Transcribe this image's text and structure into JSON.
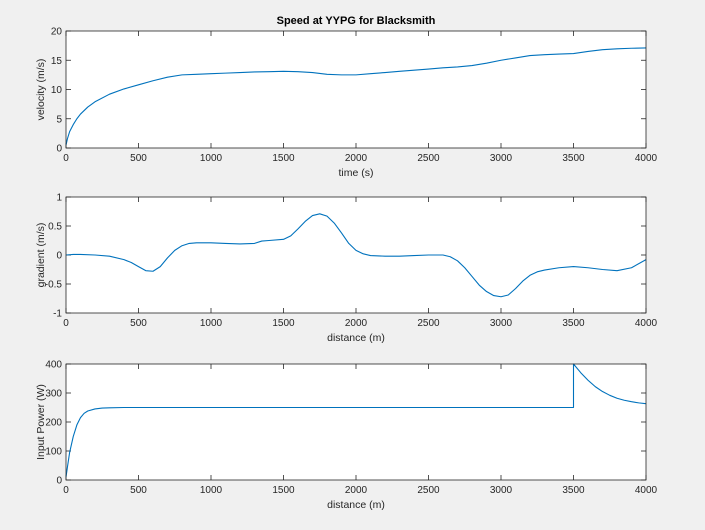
{
  "chart_data": [
    {
      "type": "line",
      "title": "Speed at YYPG for Blacksmith",
      "xlabel": "time (s)",
      "ylabel": "velocity (m/s)",
      "xlim": [
        0,
        4000
      ],
      "ylim": [
        0,
        20
      ],
      "xticks": [
        0,
        500,
        1000,
        1500,
        2000,
        2500,
        3000,
        3500,
        4000
      ],
      "yticks": [
        0,
        5,
        10,
        15,
        20
      ],
      "grid": false,
      "color": "#0072bd",
      "series": [
        {
          "x": [
            0,
            10,
            25,
            50,
            75,
            100,
            150,
            200,
            300,
            400,
            500,
            600,
            700,
            800,
            900,
            1000,
            1100,
            1200,
            1300,
            1400,
            1500,
            1600,
            1700,
            1800,
            1900,
            2000,
            2100,
            2200,
            2300,
            2400,
            2500,
            2600,
            2700,
            2800,
            2900,
            3000,
            3100,
            3200,
            3300,
            3400,
            3500,
            3600,
            3700,
            3800,
            3900,
            4000
          ],
          "y": [
            0.5,
            1.6,
            2.8,
            4.0,
            5.0,
            5.8,
            7.0,
            7.9,
            9.2,
            10.1,
            10.8,
            11.5,
            12.1,
            12.5,
            12.6,
            12.7,
            12.8,
            12.9,
            13.0,
            13.05,
            13.1,
            13.05,
            12.9,
            12.6,
            12.5,
            12.5,
            12.7,
            12.9,
            13.1,
            13.3,
            13.5,
            13.7,
            13.85,
            14.1,
            14.5,
            15.0,
            15.4,
            15.8,
            15.95,
            16.05,
            16.15,
            16.5,
            16.8,
            16.95,
            17.05,
            17.1
          ]
        }
      ]
    },
    {
      "type": "line",
      "title": "",
      "xlabel": "distance (m)",
      "ylabel": "gradient (m/s)",
      "xlim": [
        0,
        4000
      ],
      "ylim": [
        -1,
        1
      ],
      "xticks": [
        0,
        500,
        1000,
        1500,
        2000,
        2500,
        3000,
        3500,
        4000
      ],
      "yticks": [
        -1,
        -0.5,
        0,
        0.5,
        1
      ],
      "grid": false,
      "color": "#0072bd",
      "series": [
        {
          "x": [
            0,
            50,
            100,
            200,
            300,
            400,
            450,
            500,
            550,
            600,
            650,
            700,
            750,
            800,
            850,
            900,
            1000,
            1100,
            1200,
            1300,
            1350,
            1400,
            1500,
            1550,
            1600,
            1650,
            1700,
            1750,
            1800,
            1850,
            1900,
            1950,
            2000,
            2050,
            2100,
            2200,
            2300,
            2400,
            2500,
            2600,
            2650,
            2700,
            2750,
            2800,
            2850,
            2900,
            2950,
            3000,
            3050,
            3100,
            3150,
            3200,
            3250,
            3300,
            3400,
            3500,
            3600,
            3700,
            3800,
            3900,
            4000
          ],
          "y": [
            0,
            0.01,
            0.01,
            0.0,
            -0.02,
            -0.08,
            -0.13,
            -0.2,
            -0.27,
            -0.28,
            -0.2,
            -0.05,
            0.08,
            0.16,
            0.2,
            0.21,
            0.21,
            0.2,
            0.19,
            0.2,
            0.24,
            0.25,
            0.27,
            0.33,
            0.45,
            0.58,
            0.68,
            0.71,
            0.67,
            0.55,
            0.38,
            0.2,
            0.08,
            0.02,
            -0.01,
            -0.02,
            -0.02,
            -0.01,
            0.0,
            0.0,
            -0.03,
            -0.1,
            -0.22,
            -0.37,
            -0.52,
            -0.63,
            -0.7,
            -0.72,
            -0.69,
            -0.58,
            -0.45,
            -0.35,
            -0.29,
            -0.26,
            -0.22,
            -0.2,
            -0.22,
            -0.25,
            -0.27,
            -0.22,
            -0.08
          ]
        }
      ]
    },
    {
      "type": "line",
      "title": "",
      "xlabel": "distance (m)",
      "ylabel": "Input Power (W)",
      "xlim": [
        0,
        4000
      ],
      "ylim": [
        0,
        400
      ],
      "xticks": [
        0,
        500,
        1000,
        1500,
        2000,
        2500,
        3000,
        3500,
        4000
      ],
      "yticks": [
        0,
        100,
        200,
        300,
        400
      ],
      "grid": false,
      "color": "#0072bd",
      "series": [
        {
          "x": [
            0,
            10,
            25,
            50,
            75,
            100,
            125,
            150,
            200,
            250,
            300,
            400,
            500,
            1000,
            2000,
            3000,
            3500,
            3500,
            3550,
            3600,
            3650,
            3700,
            3750,
            3800,
            3850,
            3900,
            3950,
            4000
          ],
          "y": [
            10,
            45,
            95,
            150,
            190,
            215,
            230,
            238,
            245,
            248,
            249,
            250,
            250,
            250,
            250,
            250,
            250,
            400,
            370,
            344,
            322,
            305,
            292,
            282,
            275,
            270,
            266,
            263
          ]
        }
      ]
    }
  ]
}
